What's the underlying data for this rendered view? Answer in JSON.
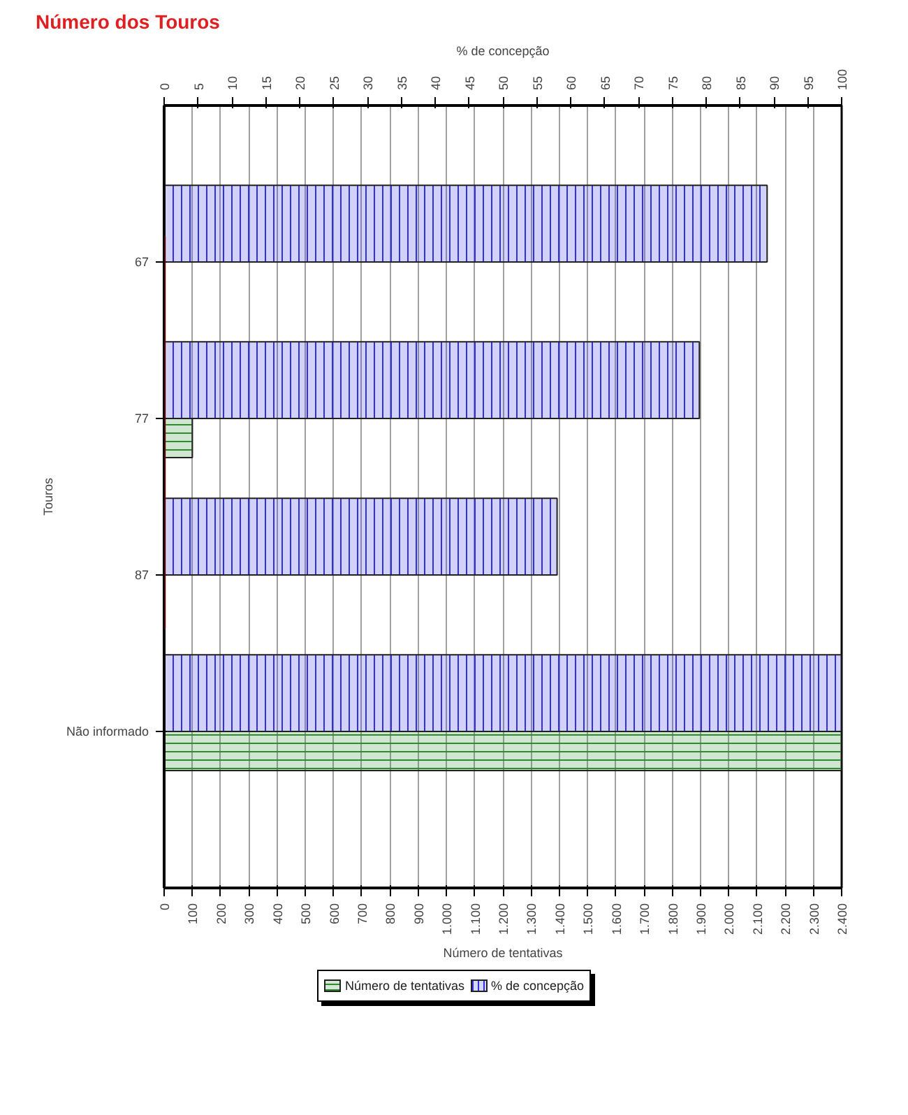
{
  "chart_data": {
    "type": "bar",
    "orientation": "horizontal",
    "title": "Número dos Touros",
    "categories": [
      "67",
      "77",
      "87",
      "Não informado"
    ],
    "series": [
      {
        "name": "% de concepção",
        "color": "#3030e0",
        "axis": "x2",
        "values": [
          89,
          79,
          58,
          100
        ]
      },
      {
        "name": "Número de tentativas",
        "color": "#2e8b2e",
        "values": [
          null,
          100,
          null,
          2400
        ]
      }
    ],
    "xlabel": "Número de tentativas",
    "x2label": "% de concepção",
    "ylabel": "Touros",
    "xlim": [
      0,
      2400
    ],
    "xticks": [
      0,
      100,
      200,
      300,
      400,
      500,
      600,
      700,
      800,
      900,
      {
        "value": 1000,
        "label": "1.000"
      },
      {
        "value": 1100,
        "label": "1.100"
      },
      {
        "value": 1200,
        "label": "1.200"
      },
      {
        "value": 1300,
        "label": "1.300"
      },
      {
        "value": 1400,
        "label": "1.400"
      },
      {
        "value": 1500,
        "label": "1.500"
      },
      {
        "value": 1600,
        "label": "1.600"
      },
      {
        "value": 1700,
        "label": "1.700"
      },
      {
        "value": 1800,
        "label": "1.800"
      },
      {
        "value": 1900,
        "label": "1.900"
      },
      {
        "value": 2000,
        "label": "2.000"
      },
      {
        "value": 2100,
        "label": "2.100"
      },
      {
        "value": 2200,
        "label": "2.200"
      },
      {
        "value": 2300,
        "label": "2.300"
      },
      {
        "value": 2400,
        "label": "2.400"
      }
    ],
    "x2lim": [
      0,
      100
    ],
    "x2ticks": [
      0,
      5,
      10,
      15,
      20,
      25,
      30,
      35,
      40,
      45,
      50,
      55,
      60,
      65,
      70,
      75,
      80,
      85,
      90,
      95,
      100
    ],
    "grid": "x",
    "legend": "bottom"
  }
}
